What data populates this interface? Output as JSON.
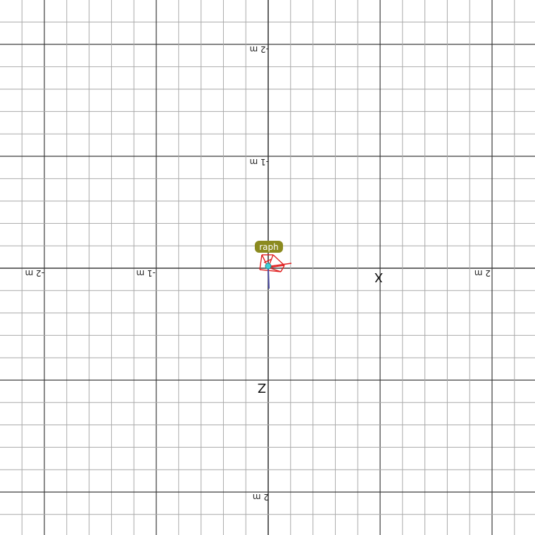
{
  "scene": {
    "background": "#ffffff",
    "grid_color_minor": "#a9a9a9",
    "grid_color_major": "#3a3a3a",
    "axis_color": "#333333"
  },
  "axes": {
    "x_label": "X",
    "z_label": "Z",
    "left_neg2": "-2 m",
    "left_neg1": "-1 m",
    "right_pos2": "2 m",
    "top_neg2": "-2 m",
    "top_neg1": "-1 m",
    "bottom_pos2": "2 m"
  },
  "object": {
    "name_tag": "raph",
    "tag_color": "#8b8a1f",
    "frustum_color": "#e02020",
    "marker_color": "#3ecfd6"
  }
}
